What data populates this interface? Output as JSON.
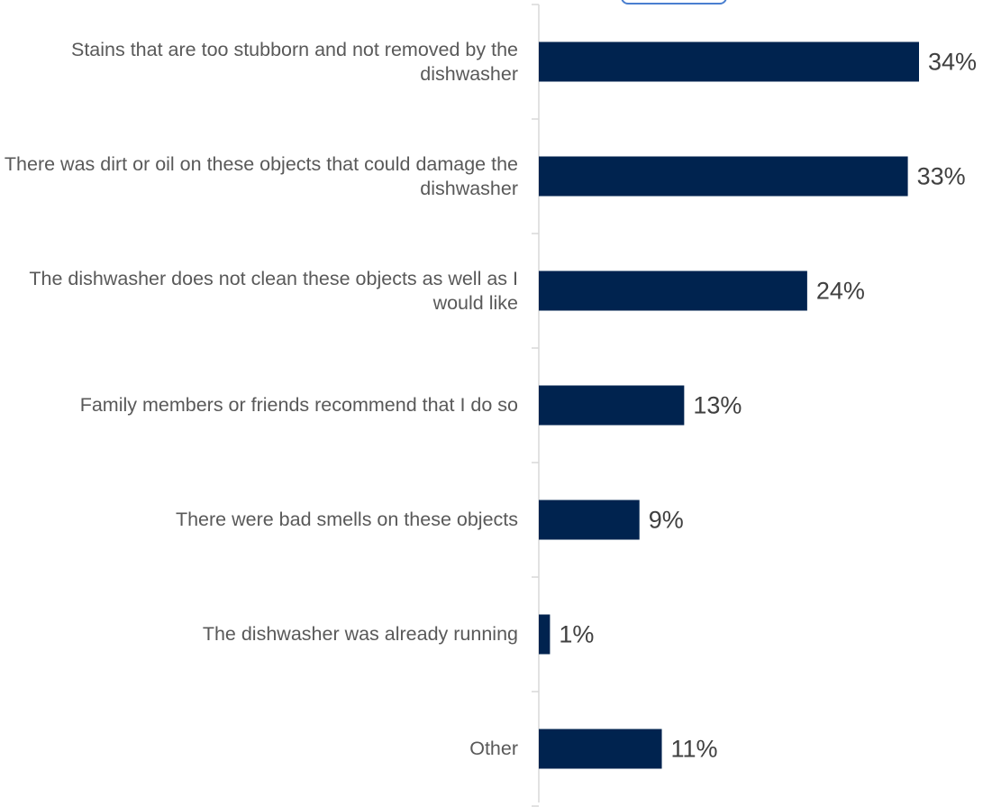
{
  "chart_data": {
    "type": "bar",
    "orientation": "horizontal",
    "categories": [
      "Stains that are too stubborn and not removed by the dishwasher",
      "There was dirt or oil on these objects that could damage the dishwasher",
      "The dishwasher does not clean these objects as well as I would like",
      "Family members or friends recommend that I do so",
      "There were bad smells on these objects",
      "The dishwasher was already running",
      "Other"
    ],
    "values": [
      34,
      33,
      24,
      13,
      9,
      1,
      11
    ],
    "value_labels": [
      "34%",
      "33%",
      "24%",
      "13%",
      "9%",
      "1%",
      "11%"
    ],
    "color": "#00234f"
  }
}
